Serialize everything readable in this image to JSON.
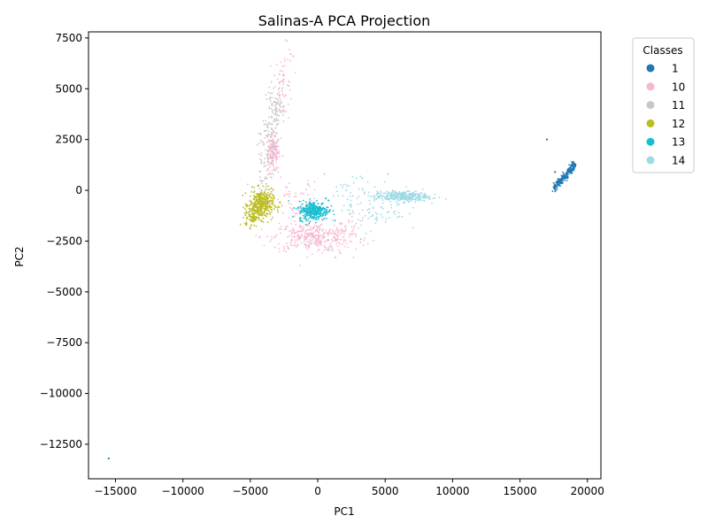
{
  "chart_data": {
    "type": "scatter",
    "title": "Salinas-A PCA Projection",
    "xlabel": "PC1",
    "ylabel": "PC2",
    "xlim": [
      -17000,
      21000
    ],
    "ylim": [
      -14200,
      7800
    ],
    "x_ticks": [
      -15000,
      -10000,
      -5000,
      0,
      5000,
      10000,
      15000,
      20000
    ],
    "y_ticks": [
      -12500,
      -10000,
      -7500,
      -5000,
      -2500,
      0,
      2500,
      5000,
      7500
    ],
    "x_tick_labels": [
      "−15000",
      "−10000",
      "−5000",
      "0",
      "5000",
      "10000",
      "15000",
      "20000"
    ],
    "y_tick_labels": [
      "−12500",
      "−10000",
      "−7500",
      "−5000",
      "−2500",
      "0",
      "2500",
      "5000",
      "7500"
    ],
    "grid": false,
    "legend": {
      "title": "Classes",
      "placement": "outside-top-right"
    },
    "series": [
      {
        "name": "1",
        "color": "#1f77b4",
        "clusters": [
          {
            "center": [
              18300,
              700
            ],
            "spread": [
              450,
              120
            ],
            "count": 220,
            "slope": 0.75,
            "range": [
              17500,
              19100
            ]
          }
        ],
        "points": [
          [
            -15500,
            -13200
          ],
          [
            17000,
            2500
          ],
          [
            17600,
            900
          ]
        ]
      },
      {
        "name": "10",
        "color": "#f7b6d2",
        "clusters": [
          {
            "center": [
              -3300,
              1800
            ],
            "spread": [
              250,
              450
            ],
            "count": 160
          },
          {
            "center": [
              -2500,
              5200
            ],
            "spread": [
              350,
              900
            ],
            "count": 60
          },
          {
            "center": [
              -500,
              -2300
            ],
            "spread": [
              1400,
              350
            ],
            "count": 320
          },
          {
            "center": [
              -1500,
              -800
            ],
            "spread": [
              900,
              600
            ],
            "count": 80
          },
          {
            "center": [
              2200,
              -2000
            ],
            "spread": [
              900,
              500
            ],
            "count": 60
          }
        ],
        "points": [
          [
            -2000,
            6700
          ],
          [
            -1800,
            6600
          ],
          [
            -4300,
            -2300
          ],
          [
            500,
            800
          ],
          [
            -700,
            300
          ]
        ]
      },
      {
        "name": "11",
        "color": "#c7c7c7",
        "clusters": [
          {
            "center": [
              -3500,
              2800
            ],
            "spread": [
              180,
              900
            ],
            "count": 200,
            "slope": 2.6,
            "range": [
              -4200,
              -2800
            ]
          }
        ],
        "points": [
          [
            -3000,
            3700
          ],
          [
            -3100,
            3900
          ]
        ]
      },
      {
        "name": "12",
        "color": "#bcbd22",
        "clusters": [
          {
            "center": [
              -4200,
              -700
            ],
            "spread": [
              450,
              350
            ],
            "count": 380
          },
          {
            "center": [
              -4900,
              -1300
            ],
            "spread": [
              250,
              250
            ],
            "count": 80
          }
        ],
        "points": [
          [
            -5300,
            -1700
          ],
          [
            -2800,
            -600
          ]
        ]
      },
      {
        "name": "13",
        "color": "#17becf",
        "clusters": [
          {
            "center": [
              -300,
              -1000
            ],
            "spread": [
              550,
              230
            ],
            "count": 320
          }
        ],
        "points": [
          [
            600,
            -400
          ],
          [
            800,
            -500
          ],
          [
            -1300,
            -1500
          ]
        ]
      },
      {
        "name": "14",
        "color": "#9edae5",
        "clusters": [
          {
            "center": [
              6200,
              -300
            ],
            "spread": [
              1000,
              130
            ],
            "count": 340
          },
          {
            "center": [
              4200,
              -900
            ],
            "spread": [
              1200,
              550
            ],
            "count": 70
          },
          {
            "center": [
              2700,
              -100
            ],
            "spread": [
              700,
              350
            ],
            "count": 30
          }
        ],
        "points": [
          [
            5200,
            800
          ],
          [
            3300,
            600
          ],
          [
            800,
            -2900
          ],
          [
            1300,
            -3300
          ],
          [
            3200,
            -2400
          ]
        ]
      }
    ]
  }
}
